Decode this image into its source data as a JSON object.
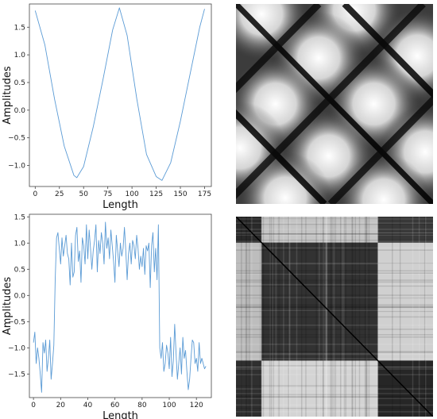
{
  "chart_data": [
    {
      "type": "line",
      "xlabel": "Length",
      "ylabel": "Amplitudes",
      "xlim": [
        -6,
        182
      ],
      "ylim": [
        -1.38,
        1.92
      ],
      "xticks": [
        0,
        25,
        50,
        75,
        100,
        125,
        150,
        175
      ],
      "yticks": [
        -1.0,
        -0.5,
        0.0,
        0.5,
        1.0,
        1.5
      ],
      "ytick_labels": [
        "−1.0",
        "−0.5",
        "0.0",
        "0.5",
        "1.0",
        "1.5"
      ],
      "line_color": "#5b9bd5",
      "series": [
        {
          "x": [
            0,
            10,
            20,
            30,
            40,
            43,
            50,
            60,
            70,
            80,
            87,
            95,
            105,
            115,
            125,
            131,
            140,
            150,
            160,
            170,
            175
          ],
          "values": [
            1.8,
            1.18,
            0.2,
            -0.65,
            -1.18,
            -1.22,
            -1.02,
            -0.3,
            0.55,
            1.45,
            1.85,
            1.35,
            0.2,
            -0.8,
            -1.2,
            -1.27,
            -0.95,
            -0.2,
            0.65,
            1.5,
            1.83
          ]
        }
      ]
    },
    {
      "type": "heatmap",
      "description_of_values": "recurrence plot, grayscale, dark diagonal",
      "colormap": "grayscale"
    },
    {
      "type": "line",
      "xlabel": "Length",
      "ylabel": "Amplitudes",
      "xlim": [
        -3,
        131
      ],
      "ylim": [
        -1.95,
        1.55
      ],
      "xticks": [
        0,
        20,
        40,
        60,
        80,
        100,
        120
      ],
      "yticks": [
        -1.5,
        -1.0,
        -0.5,
        0.0,
        0.5,
        1.0,
        1.5
      ],
      "ytick_labels": [
        "−1.5",
        "−1.0",
        "−0.5",
        "0.0",
        "0.5",
        "1.0",
        "1.5"
      ],
      "line_color": "#5b9bd5",
      "series": [
        {
          "x": [
            0,
            1,
            2,
            3,
            4,
            5,
            6,
            7,
            8,
            9,
            10,
            11,
            12,
            13,
            14,
            15,
            16,
            17,
            18,
            19,
            20,
            21,
            22,
            23,
            24,
            25,
            26,
            27,
            28,
            29,
            30,
            31,
            32,
            33,
            34,
            35,
            36,
            37,
            38,
            39,
            40,
            41,
            42,
            43,
            44,
            45,
            46,
            47,
            48,
            49,
            50,
            51,
            52,
            53,
            54,
            55,
            56,
            57,
            58,
            59,
            60,
            61,
            62,
            63,
            64,
            65,
            66,
            67,
            68,
            69,
            70,
            71,
            72,
            73,
            74,
            75,
            76,
            77,
            78,
            79,
            80,
            81,
            82,
            83,
            84,
            85,
            86,
            87,
            88,
            89,
            90,
            91,
            92,
            93,
            94,
            95,
            96,
            97,
            98,
            99,
            100,
            101,
            102,
            103,
            104,
            105,
            106,
            107,
            108,
            109,
            110,
            111,
            112,
            113,
            114,
            115,
            116,
            117,
            118,
            119,
            120,
            121,
            122,
            123,
            124,
            125,
            126,
            127
          ],
          "values": [
            -0.9,
            -0.7,
            -1.3,
            -1.0,
            -1.2,
            -1.5,
            -1.85,
            -0.9,
            -1.1,
            -0.85,
            -1.45,
            -1.2,
            -0.85,
            -1.6,
            -1.3,
            -0.95,
            0.3,
            1.1,
            1.2,
            0.9,
            0.6,
            1.1,
            0.75,
            0.95,
            1.15,
            0.8,
            0.7,
            0.2,
            1.0,
            0.35,
            0.45,
            1.15,
            1.3,
            0.65,
            0.85,
            0.25,
            1.1,
            0.95,
            0.6,
            1.35,
            0.7,
            1.25,
            0.9,
            0.5,
            0.85,
            1.05,
            1.35,
            0.45,
            1.05,
            0.8,
            1.2,
            1.0,
            0.6,
            1.4,
            0.9,
            1.1,
            0.7,
            1.25,
            0.95,
            0.65,
            0.25,
            1.15,
            0.85,
            0.55,
            1.0,
            0.75,
            0.9,
            1.3,
            0.85,
            0.3,
            0.8,
            1.0,
            0.6,
            1.05,
            0.95,
            0.7,
            1.15,
            0.9,
            0.5,
            0.75,
            0.55,
            0.9,
            0.4,
            0.95,
            0.85,
            1.0,
            0.15,
            0.95,
            1.2,
            0.45,
            0.9,
            0.3,
            1.35,
            -1.0,
            -1.2,
            -0.9,
            -1.45,
            -1.3,
            -0.95,
            -1.1,
            -1.4,
            -0.8,
            -1.55,
            -1.25,
            -0.55,
            -1.1,
            -1.6,
            -1.3,
            -1.0,
            -1.5,
            -0.8,
            -1.2,
            -1.05,
            -1.45,
            -1.8,
            -1.6,
            -1.2,
            -0.85,
            -0.9,
            -1.3,
            -1.2,
            -1.45,
            -0.9,
            -1.3,
            -1.2,
            -1.3,
            -1.4,
            -1.35
          ]
        }
      ]
    },
    {
      "type": "heatmap",
      "description_of_values": "recurrence plot, grayscale, block structure",
      "colormap": "grayscale"
    }
  ]
}
